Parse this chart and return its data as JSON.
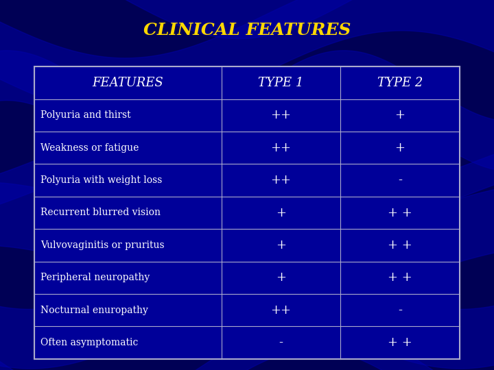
{
  "title": "CLINICAL FEATURES",
  "title_color": "#FFD700",
  "title_fontsize": 18,
  "bg_color": "#000055",
  "cell_bg_color": "#000099",
  "header_row": [
    "FEATURES",
    "TYPE 1",
    "TYPE 2"
  ],
  "rows": [
    [
      "Polyuria and thirst",
      "++",
      "+"
    ],
    [
      "Weakness or fatigue",
      "++",
      "+"
    ],
    [
      "Polyuria with weight loss",
      "++",
      "-"
    ],
    [
      "Recurrent blurred vision",
      "+",
      "+ +"
    ],
    [
      "Vulvovaginitis or pruritus",
      "+",
      "+ +"
    ],
    [
      "Peripheral neuropathy",
      "+",
      "+ +"
    ],
    [
      "Nocturnal enuropathy",
      "++",
      "-"
    ],
    [
      "Often asymptomatic",
      "-",
      "+ +"
    ]
  ],
  "header_fontsize": 13,
  "row_fontsize": 10,
  "symbol_fontsize": 13,
  "cell_text_color": "#FFFFFF",
  "header_text_color": "#FFFFFF",
  "line_color": "#AAAACC",
  "table_border_color": "#AAAACC",
  "wave_color": "#0000AA",
  "wave_dark_color": "#000044"
}
